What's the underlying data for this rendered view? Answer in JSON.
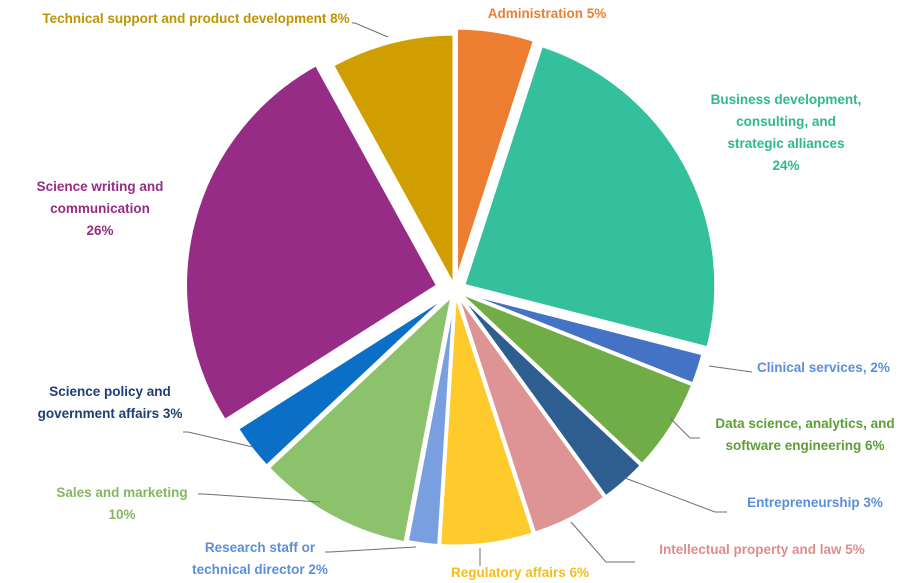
{
  "chart_data": {
    "type": "pie",
    "title": "",
    "unit": "%",
    "slices": [
      {
        "name": "Administration",
        "value": 5,
        "color": "#ED7D31",
        "label": [
          "Administration 5%"
        ]
      },
      {
        "name": "Business development, consulting, and strategic alliances",
        "value": 24,
        "color": "#34C09C",
        "label": [
          "Business development,",
          "consulting, and",
          "strategic alliances",
          "24%"
        ]
      },
      {
        "name": "Clinical services",
        "value": 2,
        "color": "#4472C4",
        "label": [
          "Clinical services, 2%"
        ]
      },
      {
        "name": "Data science, analytics, and software engineering",
        "value": 6,
        "color": "#70AD47",
        "label": [
          "Data science, analytics, and",
          "software engineering 6%"
        ]
      },
      {
        "name": "Entrepreneurship",
        "value": 3,
        "color": "#2E5D8F",
        "label": [
          "Entrepreneurship 3%"
        ]
      },
      {
        "name": "Intellectual property and law",
        "value": 5,
        "color": "#DE9494",
        "label": [
          "Intellectual property and law 5%"
        ]
      },
      {
        "name": "Regulatory affairs",
        "value": 6,
        "color": "#FFCA2B",
        "label": [
          "Regulatory affairs 6%"
        ]
      },
      {
        "name": "Research staff or technical director",
        "value": 2,
        "color": "#7A9FE0",
        "label": [
          "Research staff or",
          "technical director 2%"
        ]
      },
      {
        "name": "Sales and marketing",
        "value": 10,
        "color": "#8CC26B",
        "label": [
          "Sales and marketing",
          "10%"
        ]
      },
      {
        "name": "Science policy and government affairs",
        "value": 3,
        "color": "#0B6FC8",
        "label": [
          "Science policy and",
          "government affairs 3%"
        ]
      },
      {
        "name": "Science writing and communication",
        "value": 26,
        "color": "#962C86",
        "label": [
          "Science writing and",
          "communication",
          "26%"
        ]
      },
      {
        "name": "Technical support and product development",
        "value": 8,
        "color": "#D09E00",
        "label": [
          "Technical support and product development 8%"
        ]
      }
    ],
    "label_colors": {
      "Administration": "#ED7D31",
      "Business development, consulting, and strategic alliances": "#2FB890",
      "Clinical services": "#5B8FD9",
      "Data science, analytics, and software engineering": "#5E9E36",
      "Entrepreneurship": "#5B8FD9",
      "Intellectual property and law": "#DE8C8C",
      "Regulatory affairs": "#F2BE1E",
      "Research staff or technical director": "#5B8FD9",
      "Sales and marketing": "#82B85F",
      "Science policy and government affairs": "#1F3E73",
      "Science writing and communication": "#962C86",
      "Technical support and product development": "#C29300"
    },
    "legend": "none",
    "exploded": true
  }
}
